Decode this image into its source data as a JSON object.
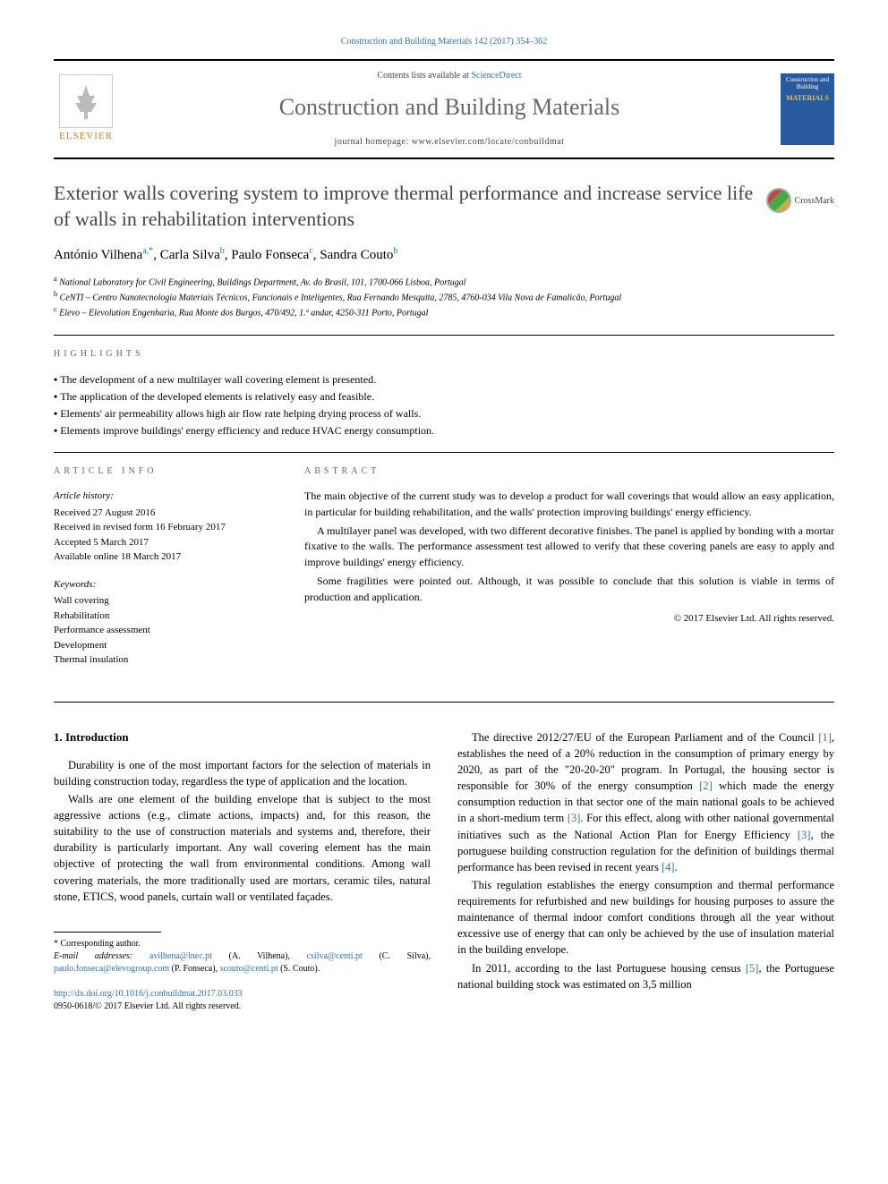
{
  "citation": "Construction and Building Materials 142 (2017) 354–362",
  "header": {
    "contentsLine": "Contents lists available at ",
    "scienceDirect": "ScienceDirect",
    "journalName": "Construction and Building Materials",
    "homepagePrefix": "journal homepage: ",
    "homepageUrl": "www.elsevier.com/locate/conbuildmat",
    "elsevierLabel": "ELSEVIER",
    "coverLine1": "Construction and Building",
    "coverLine2": "MATERIALS"
  },
  "crossmark": "CrossMark",
  "title": "Exterior walls covering system to improve thermal performance and increase service life of walls in rehabilitation interventions",
  "authors": [
    {
      "name": "António Vilhena",
      "sup": "a,*"
    },
    {
      "name": "Carla Silva",
      "sup": "b"
    },
    {
      "name": "Paulo Fonseca",
      "sup": "c"
    },
    {
      "name": "Sandra Couto",
      "sup": "b"
    }
  ],
  "affiliations": [
    {
      "sup": "a",
      "text": "National Laboratory for Civil Engineering, Buildings Department, Av. do Brasil, 101, 1700-066 Lisboa, Portugal"
    },
    {
      "sup": "b",
      "text": "CeNTI – Centro Nanotecnologia Materiais Técnicos, Funcionais e Inteligentes, Rua Fernando Mesquita, 2785, 4760-034 Vila Nova de Famalicão, Portugal"
    },
    {
      "sup": "c",
      "text": "Elevo – Elevolution Engenharia, Rua Monte dos Burgos, 470/492, 1.º andar, 4250-311 Porto, Portugal"
    }
  ],
  "highlightsHeading": "HIGHLIGHTS",
  "highlights": [
    "The development of a new multilayer wall covering element is presented.",
    "The application of the developed elements is relatively easy and feasible.",
    "Elements' air permeability allows high air flow rate helping drying process of walls.",
    "Elements improve buildings' energy efficiency and reduce HVAC energy consumption."
  ],
  "articleInfoHeading": "ARTICLE INFO",
  "articleHistoryHeading": "Article history:",
  "articleHistory": [
    "Received 27 August 2016",
    "Received in revised form 16 February 2017",
    "Accepted 5 March 2017",
    "Available online 18 March 2017"
  ],
  "keywordsHeading": "Keywords:",
  "keywords": [
    "Wall covering",
    "Rehabilitation",
    "Performance assessment",
    "Development",
    "Thermal insulation"
  ],
  "abstractHeading": "ABSTRACT",
  "abstractParagraphs": [
    "The main objective of the current study was to develop a product for wall coverings that would allow an easy application, in particular for building rehabilitation, and the walls' protection improving buildings' energy efficiency.",
    "A multilayer panel was developed, with two different decorative finishes. The panel is applied by bonding with a mortar fixative to the walls. The performance assessment test allowed to verify that these covering panels are easy to apply and improve buildings' energy efficiency.",
    "Some fragilities were pointed out. Although, it was possible to conclude that this solution is viable in terms of production and application."
  ],
  "copyright": "© 2017 Elsevier Ltd. All rights reserved.",
  "introHeading": "1. Introduction",
  "leftColParagraphs": [
    "Durability is one of the most important factors for the selection of materials in building construction today, regardless the type of application and the location.",
    "Walls are one element of the building envelope that is subject to the most aggressive actions (e.g., climate actions, impacts) and, for this reason, the suitability to the use of construction materials and systems and, therefore, their durability is particularly important. Any wall covering element has the main objective of protecting the wall from environmental conditions. Among wall covering materials, the more traditionally used are mortars, ceramic tiles, natural stone, ETICS, wood panels, curtain wall or ventilated façades."
  ],
  "rightColParagraphs": [
    {
      "pre": "The directive 2012/27/EU of the European Parliament and of the Council ",
      "ref": "[1]",
      "post": ", establishes the need of a 20% reduction in the consumption of primary energy by 2020, as part of the \"20-20-20\" program. In Portugal, the housing sector is responsible for 30% of the energy consumption ",
      "ref2": "[2]",
      "post2": " which made the energy consumption reduction in that sector one of the main national goals to be achieved in a short-medium term ",
      "ref3": "[3]",
      "post3": ". For this effect, along with other national governmental initiatives such as the National Action Plan for Energy Efficiency ",
      "ref4": "[3]",
      "post4": ", the portuguese building construction regulation for the definition of buildings thermal performance has been revised in recent years ",
      "ref5": "[4]",
      "post5": "."
    },
    {
      "pre": "This regulation establishes the energy consumption and thermal performance requirements for refurbished and new buildings for housing purposes to assure the maintenance of thermal indoor comfort conditions through all the year without excessive use of energy that can only be achieved by the use of insulation material in the building envelope."
    },
    {
      "pre": "In 2011, according to the last Portuguese housing census ",
      "ref": "[5]",
      "post": ", the Portuguese national building stock was estimated on 3,5 million"
    }
  ],
  "footnotes": {
    "correspondingLabel": "* Corresponding author.",
    "emailLabel": "E-mail addresses:",
    "emails": [
      {
        "addr": "avilhena@lnec.pt",
        "who": " (A. Vilhena), "
      },
      {
        "addr": "csilva@centi.pt",
        "who": " (C. Silva), "
      },
      {
        "addr": "paulo.fonseca@elevogroup.com",
        "who": " (P. Fonseca), "
      },
      {
        "addr": "scouto@centi.pt",
        "who": " (S. Couto)."
      }
    ]
  },
  "doi": "http://dx.doi.org/10.1016/j.conbuildmat.2017.03.033",
  "issnLine": "0950-0618/© 2017 Elsevier Ltd. All rights reserved."
}
